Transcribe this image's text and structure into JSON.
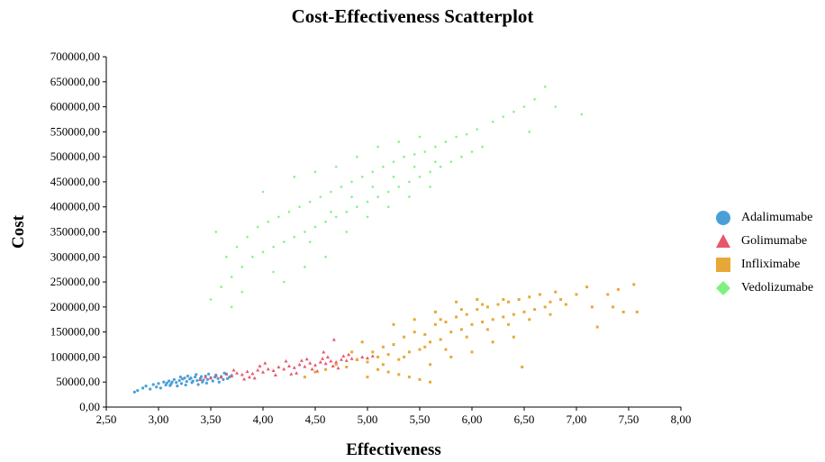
{
  "chart_data": {
    "type": "scatter",
    "title": "Cost-Effectiveness Scatterplot",
    "xlabel": "Effectiveness",
    "ylabel": "Cost",
    "xlim": [
      2.5,
      8.0
    ],
    "ylim": [
      0,
      700000
    ],
    "x_ticks": [
      "2,50",
      "3,00",
      "3,50",
      "4,00",
      "4,50",
      "5,00",
      "5,50",
      "6,00",
      "6,50",
      "7,00",
      "7,50",
      "8,00"
    ],
    "y_ticks": [
      "0,00",
      "50000,00",
      "100000,00",
      "150000,00",
      "200000,00",
      "250000,00",
      "300000,00",
      "350000,00",
      "400000,00",
      "450000,00",
      "500000,00",
      "550000,00",
      "600000,00",
      "650000,00",
      "700000,00"
    ],
    "grid": false,
    "legend_position": "right",
    "series": [
      {
        "name": "Adalimumabe",
        "marker": "circle",
        "color": "#4A9FD8",
        "points": [
          [
            2.77,
            30000
          ],
          [
            2.8,
            33000
          ],
          [
            2.85,
            38000
          ],
          [
            2.88,
            42000
          ],
          [
            2.92,
            36000
          ],
          [
            2.95,
            45000
          ],
          [
            2.98,
            40000
          ],
          [
            3.0,
            47000
          ],
          [
            3.02,
            38000
          ],
          [
            3.05,
            50000
          ],
          [
            3.07,
            44000
          ],
          [
            3.1,
            52000
          ],
          [
            3.12,
            46000
          ],
          [
            3.15,
            55000
          ],
          [
            3.17,
            49000
          ],
          [
            3.2,
            53000
          ],
          [
            3.22,
            47000
          ],
          [
            3.25,
            58000
          ],
          [
            3.27,
            51000
          ],
          [
            3.3,
            56000
          ],
          [
            3.32,
            49000
          ],
          [
            3.35,
            60000
          ],
          [
            3.37,
            53000
          ],
          [
            3.4,
            57000
          ],
          [
            3.42,
            50000
          ],
          [
            3.45,
            62000
          ],
          [
            3.47,
            55000
          ],
          [
            3.5,
            59000
          ],
          [
            3.52,
            52000
          ],
          [
            3.55,
            64000
          ],
          [
            3.57,
            57000
          ],
          [
            3.6,
            61000
          ],
          [
            3.62,
            55000
          ],
          [
            3.65,
            66000
          ],
          [
            3.68,
            60000
          ],
          [
            3.7,
            63000
          ],
          [
            3.18,
            42000
          ],
          [
            3.28,
            62000
          ],
          [
            3.38,
            45000
          ],
          [
            3.48,
            66000
          ],
          [
            3.33,
            52000
          ],
          [
            3.43,
            54000
          ],
          [
            3.13,
            50000
          ],
          [
            3.23,
            56000
          ],
          [
            3.58,
            50000
          ],
          [
            3.63,
            68000
          ],
          [
            3.08,
            48000
          ],
          [
            3.36,
            65000
          ],
          [
            3.46,
            48000
          ],
          [
            3.26,
            44000
          ],
          [
            3.54,
            60000
          ],
          [
            3.41,
            61000
          ],
          [
            3.31,
            58000
          ],
          [
            3.21,
            60000
          ],
          [
            3.11,
            43000
          ],
          [
            3.66,
            57000
          ]
        ]
      },
      {
        "name": "Golimumabe",
        "marker": "triangle",
        "color": "#E8566A",
        "points": [
          [
            3.4,
            55000
          ],
          [
            3.45,
            60000
          ],
          [
            3.5,
            58000
          ],
          [
            3.55,
            63000
          ],
          [
            3.6,
            60000
          ],
          [
            3.65,
            66000
          ],
          [
            3.7,
            62000
          ],
          [
            3.75,
            68000
          ],
          [
            3.8,
            65000
          ],
          [
            3.85,
            71000
          ],
          [
            3.9,
            67000
          ],
          [
            3.95,
            74000
          ],
          [
            4.0,
            70000
          ],
          [
            4.05,
            76000
          ],
          [
            4.1,
            73000
          ],
          [
            4.15,
            80000
          ],
          [
            4.2,
            76000
          ],
          [
            4.25,
            82000
          ],
          [
            4.3,
            79000
          ],
          [
            4.35,
            85000
          ],
          [
            4.4,
            81000
          ],
          [
            4.45,
            88000
          ],
          [
            4.5,
            84000
          ],
          [
            4.55,
            90000
          ],
          [
            4.6,
            87000
          ],
          [
            4.65,
            92000
          ],
          [
            4.7,
            90000
          ],
          [
            4.75,
            95000
          ],
          [
            4.8,
            93000
          ],
          [
            4.85,
            97000
          ],
          [
            4.9,
            95000
          ],
          [
            4.95,
            100000
          ],
          [
            5.0,
            98000
          ],
          [
            5.05,
            102000
          ],
          [
            4.12,
            64000
          ],
          [
            4.22,
            92000
          ],
          [
            4.32,
            68000
          ],
          [
            4.42,
            96000
          ],
          [
            4.52,
            72000
          ],
          [
            4.62,
            100000
          ],
          [
            4.72,
            78000
          ],
          [
            4.82,
            105000
          ],
          [
            3.92,
            58000
          ],
          [
            4.02,
            88000
          ],
          [
            3.82,
            56000
          ],
          [
            3.72,
            74000
          ],
          [
            4.58,
            110000
          ],
          [
            4.68,
            135000
          ],
          [
            4.27,
            66000
          ],
          [
            4.37,
            93000
          ],
          [
            4.47,
            76000
          ],
          [
            4.57,
            97000
          ],
          [
            4.67,
            82000
          ],
          [
            4.77,
            102000
          ],
          [
            3.97,
            82000
          ],
          [
            3.87,
            60000
          ]
        ]
      },
      {
        "name": "Infliximabe",
        "marker": "square",
        "color": "#E8A838",
        "points": [
          [
            4.4,
            60000
          ],
          [
            4.5,
            70000
          ],
          [
            4.6,
            75000
          ],
          [
            4.7,
            85000
          ],
          [
            4.8,
            80000
          ],
          [
            4.9,
            95000
          ],
          [
            5.0,
            90000
          ],
          [
            5.05,
            110000
          ],
          [
            5.1,
            100000
          ],
          [
            5.15,
            120000
          ],
          [
            5.2,
            105000
          ],
          [
            5.25,
            125000
          ],
          [
            5.3,
            95000
          ],
          [
            5.35,
            140000
          ],
          [
            5.4,
            110000
          ],
          [
            5.45,
            150000
          ],
          [
            5.5,
            115000
          ],
          [
            5.55,
            145000
          ],
          [
            5.6,
            130000
          ],
          [
            5.65,
            165000
          ],
          [
            5.7,
            135000
          ],
          [
            5.75,
            170000
          ],
          [
            5.8,
            150000
          ],
          [
            5.85,
            180000
          ],
          [
            5.9,
            155000
          ],
          [
            5.95,
            185000
          ],
          [
            6.0,
            165000
          ],
          [
            6.05,
            195000
          ],
          [
            6.1,
            170000
          ],
          [
            6.15,
            200000
          ],
          [
            6.2,
            175000
          ],
          [
            6.25,
            205000
          ],
          [
            6.3,
            180000
          ],
          [
            6.35,
            210000
          ],
          [
            6.4,
            185000
          ],
          [
            6.45,
            215000
          ],
          [
            6.5,
            190000
          ],
          [
            6.55,
            220000
          ],
          [
            6.6,
            195000
          ],
          [
            6.65,
            225000
          ],
          [
            6.7,
            200000
          ],
          [
            6.75,
            210000
          ],
          [
            6.8,
            230000
          ],
          [
            6.85,
            215000
          ],
          [
            6.9,
            205000
          ],
          [
            7.0,
            225000
          ],
          [
            7.1,
            240000
          ],
          [
            7.15,
            200000
          ],
          [
            7.2,
            160000
          ],
          [
            7.3,
            225000
          ],
          [
            7.35,
            200000
          ],
          [
            7.4,
            235000
          ],
          [
            7.45,
            190000
          ],
          [
            7.55,
            245000
          ],
          [
            7.58,
            190000
          ],
          [
            6.48,
            80000
          ],
          [
            5.2,
            70000
          ],
          [
            5.4,
            60000
          ],
          [
            5.6,
            85000
          ],
          [
            5.5,
            55000
          ],
          [
            5.8,
            100000
          ],
          [
            6.0,
            110000
          ],
          [
            6.2,
            130000
          ],
          [
            6.4,
            140000
          ],
          [
            5.1,
            75000
          ],
          [
            5.3,
            65000
          ],
          [
            5.7,
            175000
          ],
          [
            5.9,
            195000
          ],
          [
            6.1,
            205000
          ],
          [
            6.3,
            215000
          ],
          [
            4.95,
            130000
          ],
          [
            5.25,
            165000
          ],
          [
            5.45,
            175000
          ],
          [
            5.65,
            190000
          ],
          [
            5.85,
            210000
          ],
          [
            6.05,
            215000
          ],
          [
            4.85,
            110000
          ],
          [
            5.15,
            85000
          ],
          [
            5.35,
            100000
          ],
          [
            5.55,
            120000
          ],
          [
            5.75,
            115000
          ],
          [
            5.95,
            140000
          ],
          [
            6.15,
            155000
          ],
          [
            6.35,
            165000
          ],
          [
            6.55,
            175000
          ],
          [
            6.75,
            185000
          ],
          [
            5.0,
            60000
          ],
          [
            5.6,
            50000
          ]
        ]
      },
      {
        "name": "Vedolizumabe",
        "marker": "diamond",
        "color": "#7FF07F",
        "points": [
          [
            3.5,
            215000
          ],
          [
            3.55,
            350000
          ],
          [
            3.6,
            240000
          ],
          [
            3.65,
            300000
          ],
          [
            3.7,
            260000
          ],
          [
            3.75,
            320000
          ],
          [
            3.8,
            280000
          ],
          [
            3.85,
            340000
          ],
          [
            3.9,
            300000
          ],
          [
            3.95,
            360000
          ],
          [
            4.0,
            310000
          ],
          [
            4.05,
            370000
          ],
          [
            4.1,
            320000
          ],
          [
            4.15,
            380000
          ],
          [
            4.2,
            330000
          ],
          [
            4.25,
            390000
          ],
          [
            4.3,
            340000
          ],
          [
            4.35,
            400000
          ],
          [
            4.4,
            350000
          ],
          [
            4.45,
            410000
          ],
          [
            4.5,
            360000
          ],
          [
            4.55,
            420000
          ],
          [
            4.6,
            370000
          ],
          [
            4.65,
            430000
          ],
          [
            4.7,
            380000
          ],
          [
            4.75,
            440000
          ],
          [
            4.8,
            390000
          ],
          [
            4.85,
            450000
          ],
          [
            4.9,
            400000
          ],
          [
            4.95,
            460000
          ],
          [
            5.0,
            410000
          ],
          [
            5.05,
            470000
          ],
          [
            5.1,
            420000
          ],
          [
            5.15,
            480000
          ],
          [
            5.2,
            430000
          ],
          [
            5.25,
            490000
          ],
          [
            5.3,
            440000
          ],
          [
            5.35,
            500000
          ],
          [
            5.4,
            450000
          ],
          [
            5.45,
            505000
          ],
          [
            5.5,
            460000
          ],
          [
            5.55,
            510000
          ],
          [
            5.6,
            470000
          ],
          [
            5.65,
            520000
          ],
          [
            5.7,
            480000
          ],
          [
            5.75,
            530000
          ],
          [
            5.8,
            490000
          ],
          [
            5.85,
            540000
          ],
          [
            5.9,
            500000
          ],
          [
            5.95,
            545000
          ],
          [
            6.0,
            510000
          ],
          [
            6.05,
            555000
          ],
          [
            6.1,
            520000
          ],
          [
            6.2,
            570000
          ],
          [
            6.3,
            580000
          ],
          [
            6.4,
            590000
          ],
          [
            6.5,
            600000
          ],
          [
            6.6,
            615000
          ],
          [
            6.7,
            640000
          ],
          [
            6.8,
            600000
          ],
          [
            7.05,
            585000
          ],
          [
            6.55,
            550000
          ],
          [
            4.2,
            250000
          ],
          [
            4.4,
            280000
          ],
          [
            4.6,
            300000
          ],
          [
            4.8,
            350000
          ],
          [
            5.0,
            380000
          ],
          [
            5.2,
            400000
          ],
          [
            5.4,
            420000
          ],
          [
            5.6,
            440000
          ],
          [
            4.0,
            430000
          ],
          [
            4.3,
            460000
          ],
          [
            4.5,
            470000
          ],
          [
            4.7,
            480000
          ],
          [
            4.9,
            500000
          ],
          [
            5.1,
            520000
          ],
          [
            5.3,
            530000
          ],
          [
            5.5,
            540000
          ],
          [
            3.7,
            200000
          ],
          [
            3.8,
            230000
          ],
          [
            4.1,
            270000
          ],
          [
            4.45,
            330000
          ],
          [
            4.65,
            390000
          ],
          [
            4.85,
            420000
          ],
          [
            5.05,
            440000
          ],
          [
            5.25,
            460000
          ],
          [
            5.45,
            480000
          ],
          [
            5.65,
            490000
          ]
        ]
      }
    ]
  }
}
